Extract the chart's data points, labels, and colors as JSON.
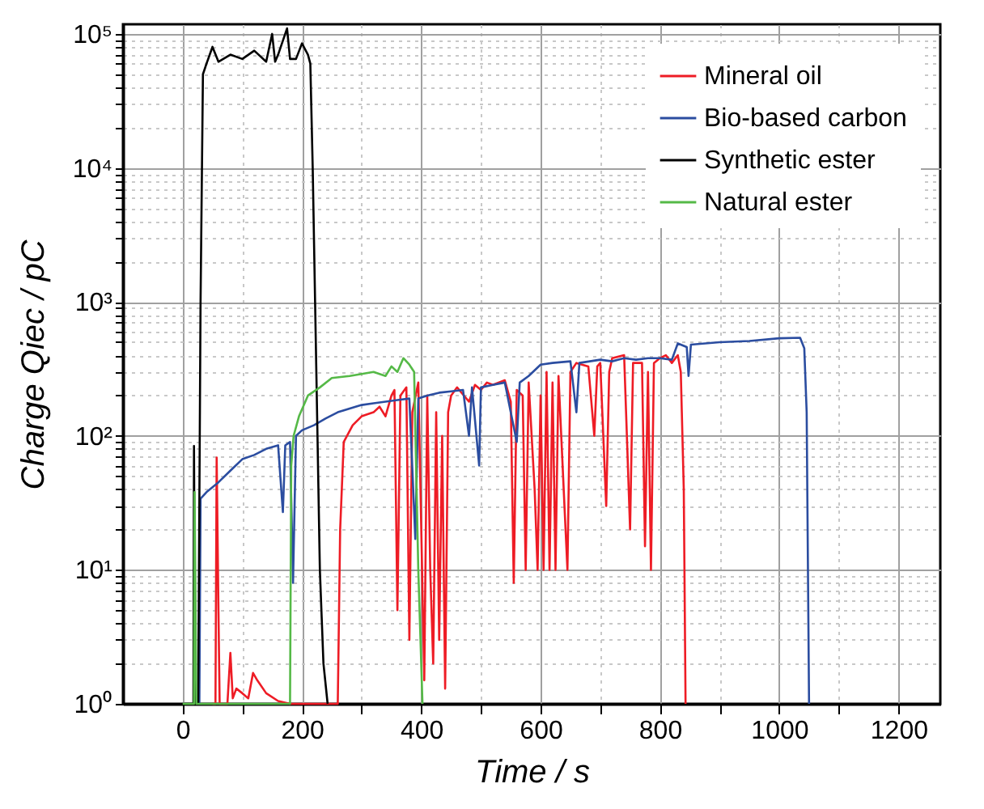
{
  "chart_data": {
    "type": "line",
    "xlabel": "Time / s",
    "ylabel": "Charge Qiec / pC",
    "xlim": [
      -100,
      1270
    ],
    "ylim": [
      1,
      118000
    ],
    "log": "y",
    "grid": true,
    "legend": "top right",
    "line_style": "solid",
    "marker": "none",
    "xticks": [
      0,
      {
        "value": 100,
        "label": null
      },
      200,
      {
        "value": 300,
        "label": null
      },
      400,
      {
        "value": 500,
        "label": null
      },
      600,
      {
        "value": 700,
        "label": null
      },
      800,
      {
        "value": 900,
        "label": null
      },
      1000,
      {
        "value": 1100,
        "label": null
      },
      1200
    ],
    "yticks": [
      {
        "value": 1,
        "label": "10⁰"
      },
      {
        "value": 2,
        "label": null
      },
      {
        "value": 3,
        "label": null
      },
      {
        "value": 4,
        "label": null
      },
      {
        "value": 5,
        "label": null
      },
      {
        "value": 6,
        "label": null
      },
      {
        "value": 7,
        "label": null
      },
      {
        "value": 8,
        "label": null
      },
      {
        "value": 9,
        "label": null
      },
      {
        "value": 10,
        "label": "10¹"
      },
      {
        "value": 20,
        "label": null
      },
      {
        "value": 30,
        "label": null
      },
      {
        "value": 40,
        "label": null
      },
      {
        "value": 50,
        "label": null
      },
      {
        "value": 60,
        "label": null
      },
      {
        "value": 70,
        "label": null
      },
      {
        "value": 80,
        "label": null
      },
      {
        "value": 90,
        "label": null
      },
      {
        "value": 100,
        "label": "10²"
      },
      {
        "value": 200,
        "label": null
      },
      {
        "value": 300,
        "label": null
      },
      {
        "value": 400,
        "label": null
      },
      {
        "value": 500,
        "label": null
      },
      {
        "value": 600,
        "label": null
      },
      {
        "value": 700,
        "label": null
      },
      {
        "value": 800,
        "label": null
      },
      {
        "value": 900,
        "label": null
      },
      {
        "value": 1000,
        "label": "10³"
      },
      {
        "value": 2000,
        "label": null
      },
      {
        "value": 3000,
        "label": null
      },
      {
        "value": 4000,
        "label": null
      },
      {
        "value": 5000,
        "label": null
      },
      {
        "value": 6000,
        "label": null
      },
      {
        "value": 7000,
        "label": null
      },
      {
        "value": 8000,
        "label": null
      },
      {
        "value": 9000,
        "label": null
      },
      {
        "value": 10000,
        "label": "10⁴"
      },
      {
        "value": 20000,
        "label": null
      },
      {
        "value": 30000,
        "label": null
      },
      {
        "value": 40000,
        "label": null
      },
      {
        "value": 50000,
        "label": null
      },
      {
        "value": 60000,
        "label": null
      },
      {
        "value": 70000,
        "label": null
      },
      {
        "value": 80000,
        "label": null
      },
      {
        "value": 90000,
        "label": null
      },
      {
        "value": 100000,
        "label": "10⁵"
      }
    ],
    "series": [
      {
        "name": "Mineral oil",
        "color": "#ee1c25",
        "x": [
          50,
          55,
          57,
          60,
          62,
          75,
          80,
          84,
          90,
          100,
          110,
          118,
          125,
          140,
          160,
          180,
          260,
          264,
          270,
          285,
          300,
          320,
          330,
          340,
          350,
          355,
          360,
          365,
          375,
          380,
          385,
          395,
          400,
          405,
          410,
          415,
          420,
          425,
          430,
          435,
          440,
          445,
          450,
          460,
          480,
          490,
          500,
          510,
          520,
          540,
          550,
          555,
          560,
          570,
          575,
          580,
          590,
          595,
          600,
          605,
          610,
          615,
          620,
          625,
          630,
          640,
          645,
          650,
          660,
          680,
          690,
          695,
          700,
          710,
          715,
          720,
          740,
          750,
          755,
          770,
          775,
          780,
          785,
          790,
          800,
          810,
          820,
          830,
          835,
          840,
          843
        ],
        "values": [
          1,
          1,
          69,
          5,
          1,
          1,
          2.4,
          1.1,
          1.3,
          1.2,
          1.1,
          1.7,
          1.5,
          1.2,
          1.05,
          1,
          1,
          20,
          90,
          120,
          140,
          150,
          165,
          140,
          200,
          220,
          5,
          200,
          230,
          3,
          150,
          250,
          20,
          1.5,
          200,
          10,
          2,
          150,
          3,
          100,
          1.3,
          150,
          200,
          230,
          180,
          240,
          220,
          250,
          240,
          260,
          180,
          8,
          220,
          200,
          10,
          250,
          40,
          10,
          200,
          10,
          300,
          10,
          250,
          10,
          280,
          30,
          10,
          300,
          350,
          330,
          100,
          330,
          350,
          30,
          300,
          380,
          400,
          20,
          350,
          350,
          15,
          300,
          10,
          350,
          380,
          400,
          350,
          400,
          300,
          40,
          1
        ]
      },
      {
        "name": "Bio-based carbon",
        "color": "#2b4da0",
        "x": [
          28,
          30,
          40,
          60,
          80,
          100,
          120,
          140,
          160,
          168,
          172,
          180,
          185,
          190,
          200,
          220,
          240,
          260,
          280,
          300,
          320,
          340,
          360,
          380,
          390,
          395,
          410,
          430,
          450,
          470,
          480,
          485,
          497,
          500,
          520,
          540,
          560,
          565,
          580,
          600,
          620,
          650,
          660,
          665,
          700,
          720,
          740,
          760,
          780,
          800,
          820,
          830,
          845,
          848,
          852,
          900,
          950,
          1000,
          1035,
          1042,
          1046,
          1050
        ],
        "values": [
          1,
          34,
          38,
          45,
          55,
          67,
          72,
          80,
          85,
          27,
          85,
          90,
          8,
          100,
          110,
          120,
          135,
          150,
          160,
          170,
          175,
          180,
          185,
          190,
          17,
          190,
          200,
          210,
          215,
          220,
          100,
          230,
          60,
          230,
          240,
          250,
          90,
          250,
          280,
          340,
          350,
          360,
          150,
          350,
          370,
          360,
          380,
          370,
          380,
          380,
          370,
          490,
          460,
          280,
          480,
          500,
          510,
          535,
          540,
          450,
          150,
          1
        ]
      },
      {
        "name": "Synthetic ester",
        "color": "#000000",
        "x": [
          0,
          18,
          19,
          21,
          26,
          30,
          34,
          40,
          50,
          60,
          80,
          100,
          120,
          140,
          150,
          155,
          160,
          175,
          180,
          190,
          200,
          210,
          214,
          218,
          222,
          226,
          230,
          236,
          243
        ],
        "values": [
          1,
          1,
          84,
          1,
          1,
          1000,
          50000,
          60000,
          80000,
          62000,
          70000,
          65000,
          75000,
          62000,
          100000,
          62000,
          70000,
          110000,
          65000,
          65000,
          85000,
          70000,
          60000,
          10000,
          1000,
          100,
          10,
          2,
          1
        ]
      },
      {
        "name": "Natural ester",
        "color": "#55b947",
        "x": [
          0,
          19,
          20,
          23,
          180,
          182,
          186,
          195,
          210,
          230,
          250,
          280,
          300,
          320,
          340,
          350,
          360,
          370,
          380,
          388,
          395,
          402
        ],
        "values": [
          1,
          1,
          38,
          1,
          1,
          60,
          100,
          140,
          200,
          230,
          270,
          280,
          290,
          300,
          280,
          330,
          300,
          380,
          340,
          300,
          10,
          1
        ]
      }
    ]
  }
}
